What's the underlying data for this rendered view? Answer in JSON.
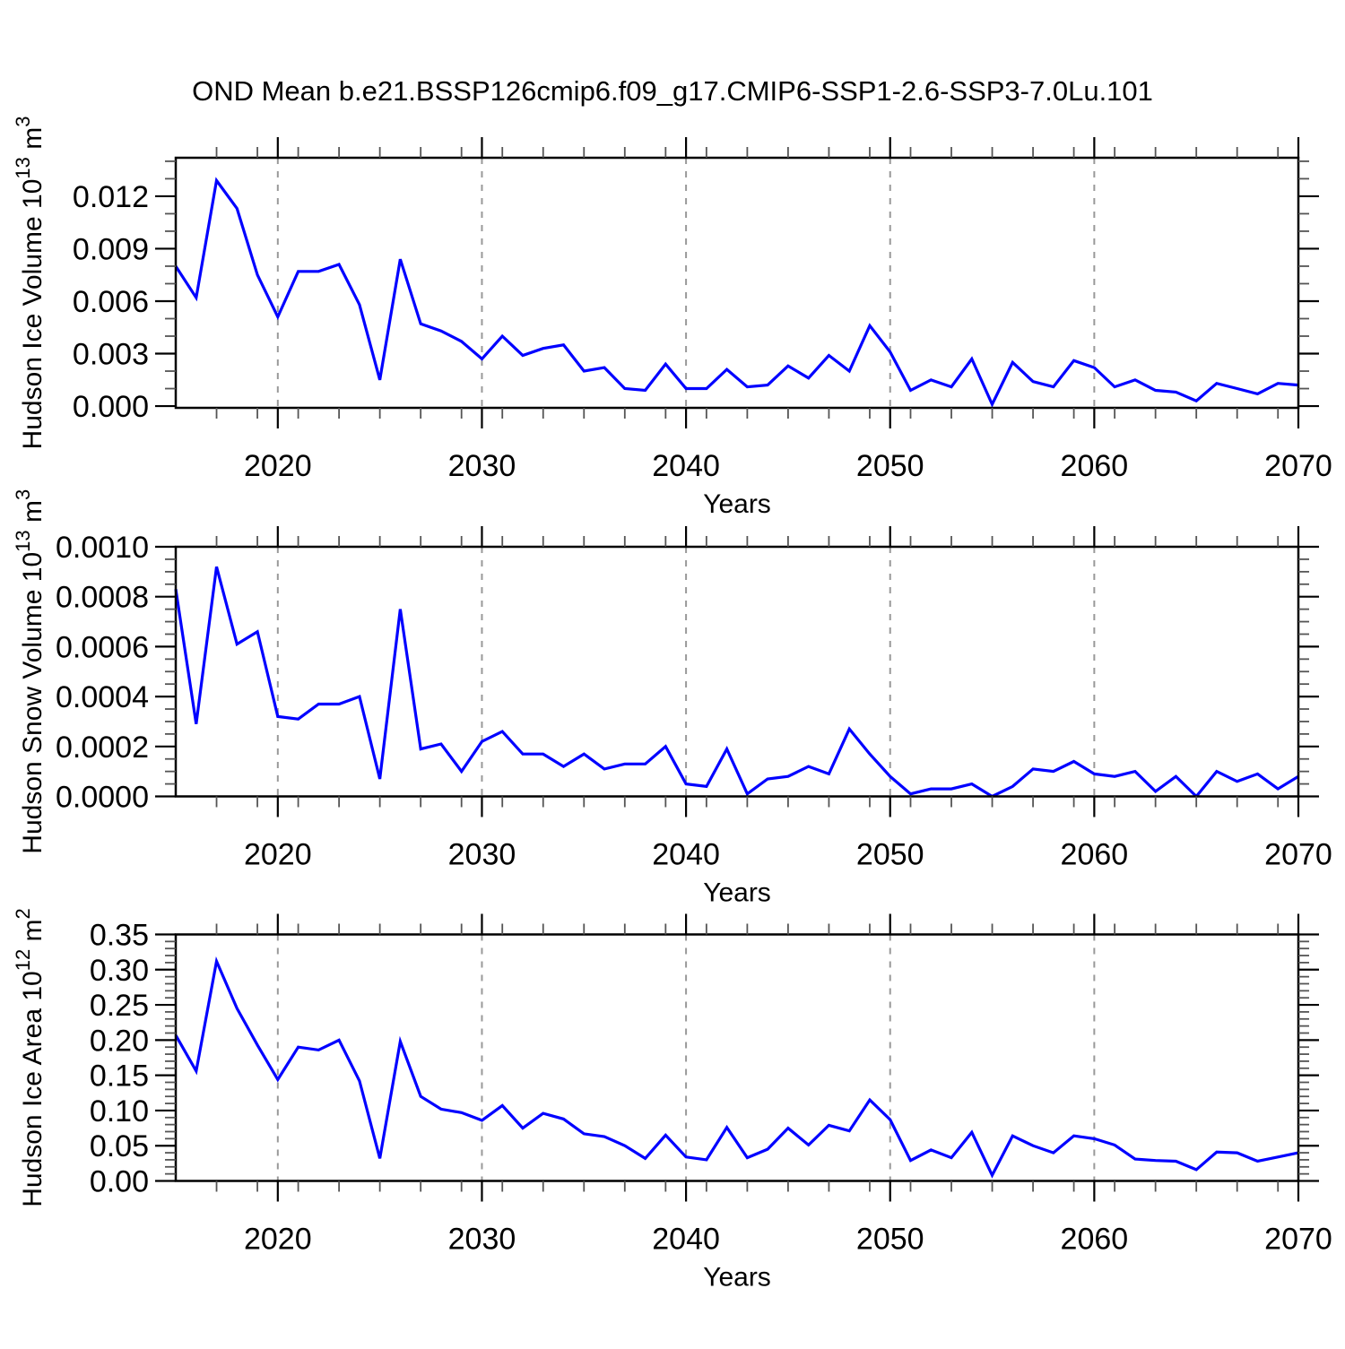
{
  "title": "OND Mean b.e21.BSSP126cmip6.f09_g17.CMIP6-SSP1-2.6-SSP3-7.0Lu.101",
  "style": {
    "line_color": "#0000ff",
    "grid_color": "#999999",
    "axis_color": "#000000",
    "minor_tick_color": "#555555"
  },
  "chart_data": [
    {
      "type": "line",
      "name": "hudson-ice-volume",
      "title": "",
      "ylabel": "Hudson Ice Volume 10^13 m^3",
      "ylabel_segments": [
        {
          "t": "Hudson Ice Volume 10"
        },
        {
          "t": "13",
          "sup": true
        },
        {
          "t": " m"
        },
        {
          "t": "3",
          "sup": true
        }
      ],
      "xlabel": "Years",
      "xlim": [
        2015,
        2070
      ],
      "ylim": [
        -0.0001,
        0.0142
      ],
      "xticks": {
        "values": [
          2020,
          2030,
          2040,
          2050,
          2060,
          2070
        ],
        "labels": [
          "2020",
          "2030",
          "2040",
          "2050",
          "2060",
          "2070"
        ]
      },
      "xminor_step": 2,
      "grid_years": [
        2020,
        2030,
        2040,
        2050,
        2060
      ],
      "yticks": {
        "values": [
          0.0,
          0.003,
          0.006,
          0.009,
          0.012
        ],
        "labels": [
          "0.000",
          "0.003",
          "0.006",
          "0.009",
          "0.012"
        ]
      },
      "yminor_step": 0.001,
      "line_color": "#0000ff",
      "x": [
        2015,
        2016,
        2017,
        2018,
        2019,
        2020,
        2021,
        2022,
        2023,
        2024,
        2025,
        2026,
        2027,
        2028,
        2029,
        2030,
        2031,
        2032,
        2033,
        2034,
        2035,
        2036,
        2037,
        2038,
        2039,
        2040,
        2041,
        2042,
        2043,
        2044,
        2045,
        2046,
        2047,
        2048,
        2049,
        2050,
        2051,
        2052,
        2053,
        2054,
        2055,
        2056,
        2057,
        2058,
        2059,
        2060,
        2061,
        2062,
        2063,
        2064,
        2065,
        2066,
        2067,
        2068,
        2069,
        2070
      ],
      "values": [
        0.008,
        0.0062,
        0.0129,
        0.0113,
        0.0075,
        0.0051,
        0.0077,
        0.0077,
        0.0081,
        0.0058,
        0.0015,
        0.0084,
        0.0047,
        0.0043,
        0.0037,
        0.0027,
        0.004,
        0.0029,
        0.0033,
        0.0035,
        0.002,
        0.0022,
        0.001,
        0.0009,
        0.0024,
        0.001,
        0.001,
        0.0021,
        0.0011,
        0.0012,
        0.0023,
        0.0016,
        0.0029,
        0.002,
        0.0046,
        0.0031,
        0.0009,
        0.0015,
        0.0011,
        0.0027,
        0.0001,
        0.0025,
        0.0014,
        0.0011,
        0.0026,
        0.0022,
        0.0011,
        0.0015,
        0.0009,
        0.0008,
        0.0003,
        0.0013,
        0.001,
        0.0007,
        0.0013,
        0.0012
      ]
    },
    {
      "type": "line",
      "name": "hudson-snow-volume",
      "title": "",
      "ylabel": "Hudson Snow Volume 10^13 m^3",
      "ylabel_segments": [
        {
          "t": "Hudson Snow Volume 10"
        },
        {
          "t": "13",
          "sup": true
        },
        {
          "t": " m"
        },
        {
          "t": "3",
          "sup": true
        }
      ],
      "xlabel": "Years",
      "xlim": [
        2015,
        2070
      ],
      "ylim": [
        0.0,
        0.001
      ],
      "xticks": {
        "values": [
          2020,
          2030,
          2040,
          2050,
          2060,
          2070
        ],
        "labels": [
          "2020",
          "2030",
          "2040",
          "2050",
          "2060",
          "2070"
        ]
      },
      "xminor_step": 2,
      "grid_years": [
        2020,
        2030,
        2040,
        2050,
        2060
      ],
      "yticks": {
        "values": [
          0.0,
          0.0002,
          0.0004,
          0.0006,
          0.0008,
          0.001
        ],
        "labels": [
          "0.0000",
          "0.0002",
          "0.0004",
          "0.0006",
          "0.0008",
          "0.0010"
        ]
      },
      "yminor_step": 5e-05,
      "line_color": "#0000ff",
      "x": [
        2015,
        2016,
        2017,
        2018,
        2019,
        2020,
        2021,
        2022,
        2023,
        2024,
        2025,
        2026,
        2027,
        2028,
        2029,
        2030,
        2031,
        2032,
        2033,
        2034,
        2035,
        2036,
        2037,
        2038,
        2039,
        2040,
        2041,
        2042,
        2043,
        2044,
        2045,
        2046,
        2047,
        2048,
        2049,
        2050,
        2051,
        2052,
        2053,
        2054,
        2055,
        2056,
        2057,
        2058,
        2059,
        2060,
        2061,
        2062,
        2063,
        2064,
        2065,
        2066,
        2067,
        2068,
        2069,
        2070
      ],
      "values": [
        0.00083,
        0.00029,
        0.00092,
        0.00061,
        0.00066,
        0.00032,
        0.00031,
        0.00037,
        0.00037,
        0.0004,
        7e-05,
        0.00075,
        0.00019,
        0.00021,
        0.0001,
        0.00022,
        0.00026,
        0.00017,
        0.00017,
        0.00012,
        0.00017,
        0.00011,
        0.00013,
        0.00013,
        0.0002,
        5e-05,
        4e-05,
        0.00019,
        1e-05,
        7e-05,
        8e-05,
        0.00012,
        9e-05,
        0.00027,
        0.00017,
        8e-05,
        1e-05,
        3e-05,
        3e-05,
        5e-05,
        0.0,
        4e-05,
        0.00011,
        0.0001,
        0.00014,
        9e-05,
        8e-05,
        0.0001,
        2e-05,
        8e-05,
        0.0,
        0.0001,
        6e-05,
        9e-05,
        3e-05,
        8e-05
      ]
    },
    {
      "type": "line",
      "name": "hudson-ice-area",
      "title": "",
      "ylabel": "Hudson Ice Area 10^12 m^2",
      "ylabel_segments": [
        {
          "t": "Hudson Ice Area 10"
        },
        {
          "t": "12",
          "sup": true
        },
        {
          "t": " m"
        },
        {
          "t": "2",
          "sup": true
        }
      ],
      "xlabel": "Years",
      "xlim": [
        2015,
        2070
      ],
      "ylim": [
        0.0,
        0.35
      ],
      "xticks": {
        "values": [
          2020,
          2030,
          2040,
          2050,
          2060,
          2070
        ],
        "labels": [
          "2020",
          "2030",
          "2040",
          "2050",
          "2060",
          "2070"
        ]
      },
      "xminor_step": 2,
      "grid_years": [
        2020,
        2030,
        2040,
        2050,
        2060
      ],
      "yticks": {
        "values": [
          0.0,
          0.05,
          0.1,
          0.15,
          0.2,
          0.25,
          0.3,
          0.35
        ],
        "labels": [
          "0.00",
          "0.05",
          "0.10",
          "0.15",
          "0.20",
          "0.25",
          "0.30",
          "0.35"
        ]
      },
      "yminor_step": 0.01,
      "line_color": "#0000ff",
      "x": [
        2015,
        2016,
        2017,
        2018,
        2019,
        2020,
        2021,
        2022,
        2023,
        2024,
        2025,
        2026,
        2027,
        2028,
        2029,
        2030,
        2031,
        2032,
        2033,
        2034,
        2035,
        2036,
        2037,
        2038,
        2039,
        2040,
        2041,
        2042,
        2043,
        2044,
        2045,
        2046,
        2047,
        2048,
        2049,
        2050,
        2051,
        2052,
        2053,
        2054,
        2055,
        2056,
        2057,
        2058,
        2059,
        2060,
        2061,
        2062,
        2063,
        2064,
        2065,
        2066,
        2067,
        2068,
        2069,
        2070
      ],
      "values": [
        0.207,
        0.156,
        0.312,
        0.245,
        0.193,
        0.144,
        0.19,
        0.186,
        0.2,
        0.142,
        0.032,
        0.198,
        0.12,
        0.102,
        0.097,
        0.086,
        0.107,
        0.075,
        0.096,
        0.088,
        0.067,
        0.063,
        0.05,
        0.032,
        0.065,
        0.034,
        0.03,
        0.076,
        0.033,
        0.045,
        0.075,
        0.051,
        0.079,
        0.071,
        0.115,
        0.087,
        0.029,
        0.044,
        0.033,
        0.069,
        0.008,
        0.064,
        0.05,
        0.04,
        0.064,
        0.06,
        0.051,
        0.031,
        0.029,
        0.028,
        0.016,
        0.041,
        0.04,
        0.028,
        0.034,
        0.04
      ]
    }
  ]
}
